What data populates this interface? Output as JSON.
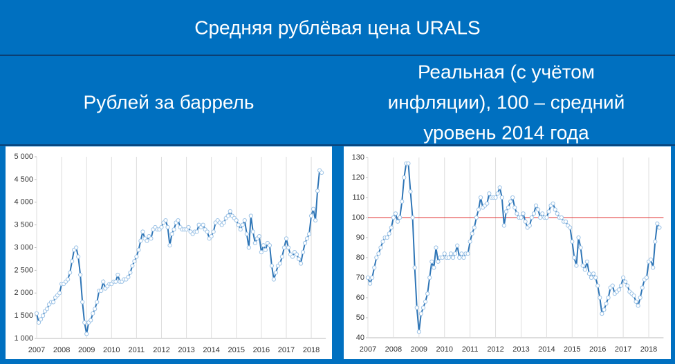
{
  "header": {
    "title": "Средняя рублёвая цена URALS",
    "left": [
      "Рублей за баррель"
    ],
    "right": [
      "Реальная (с учётом",
      "инфляции), 100 – средний",
      "уровень 2014 года"
    ]
  },
  "chart_data": [
    {
      "type": "line",
      "color": "#2e75b6",
      "marker_color": "#9dc3e6",
      "grid": "x",
      "categories": [
        "2007",
        null,
        null,
        null,
        null,
        null,
        null,
        null,
        null,
        null,
        null,
        null,
        "2008",
        null,
        null,
        null,
        null,
        null,
        null,
        null,
        null,
        null,
        null,
        null,
        "2009",
        null,
        null,
        null,
        null,
        null,
        null,
        null,
        null,
        null,
        null,
        null,
        "2010",
        null,
        null,
        null,
        null,
        null,
        null,
        null,
        null,
        null,
        null,
        null,
        "2011",
        null,
        null,
        null,
        null,
        null,
        null,
        null,
        null,
        null,
        null,
        null,
        "2012",
        null,
        null,
        null,
        null,
        null,
        null,
        null,
        null,
        null,
        null,
        null,
        "2013",
        null,
        null,
        null,
        null,
        null,
        null,
        null,
        null,
        null,
        null,
        null,
        "2014",
        null,
        null,
        null,
        null,
        null,
        null,
        null,
        null,
        null,
        null,
        null,
        "2015",
        null,
        null,
        null,
        null,
        null,
        null,
        null,
        null,
        null,
        null,
        null,
        "2016",
        null,
        null,
        null,
        null,
        null,
        null,
        null,
        null,
        null,
        null,
        null,
        "2017",
        null,
        null,
        null,
        null,
        null,
        null,
        null,
        null,
        null,
        null,
        null,
        "2018",
        null,
        null,
        null,
        null,
        null
      ],
      "values": [
        1550,
        1350,
        1420,
        1500,
        1600,
        1650,
        1750,
        1800,
        1800,
        1900,
        1950,
        2000,
        2200,
        2200,
        2250,
        2300,
        2450,
        2700,
        2950,
        3000,
        2800,
        2400,
        1800,
        1350,
        1100,
        1350,
        1400,
        1550,
        1650,
        1800,
        2050,
        2050,
        2250,
        2100,
        2150,
        2200,
        2200,
        2250,
        2250,
        2400,
        2250,
        2250,
        2300,
        2300,
        2350,
        2450,
        2600,
        2700,
        2800,
        2950,
        3150,
        3350,
        3200,
        3150,
        3250,
        3200,
        3400,
        3450,
        3400,
        3400,
        3450,
        3550,
        3600,
        3450,
        3050,
        3300,
        3400,
        3550,
        3600,
        3450,
        3400,
        3400,
        3400,
        3450,
        3350,
        3300,
        3350,
        3350,
        3500,
        3450,
        3500,
        3400,
        3350,
        3200,
        3250,
        3350,
        3550,
        3600,
        3550,
        3500,
        3550,
        3650,
        3700,
        3800,
        3700,
        3650,
        3600,
        3500,
        3400,
        3500,
        3600,
        3300,
        3000,
        3700,
        3350,
        3100,
        3200,
        3250,
        2900,
        3050,
        2950,
        3100,
        3050,
        2600,
        2300,
        2450,
        2600,
        2650,
        2800,
        3000,
        3200,
        3000,
        2850,
        2800,
        2900,
        2850,
        2750,
        2650,
        2900,
        3100,
        3200,
        3300,
        3700,
        3850,
        3600,
        4250,
        4700,
        4650
      ],
      "ylim": [
        1000,
        5000
      ],
      "yticks": [
        {
          "value": 1000,
          "label": "1 000"
        },
        {
          "value": 1500,
          "label": "1 500"
        },
        {
          "value": 2000,
          "label": "2 000"
        },
        {
          "value": 2500,
          "label": "2 500"
        },
        {
          "value": 3000,
          "label": "3 000"
        },
        {
          "value": 3500,
          "label": "3 500"
        },
        {
          "value": 4000,
          "label": "4 000"
        },
        {
          "value": 4500,
          "label": "4 500"
        },
        {
          "value": 5000,
          "label": "5 000"
        }
      ]
    },
    {
      "type": "line",
      "color": "#2e75b6",
      "marker_color": "#9dc3e6",
      "grid": "x",
      "reference_line": 100,
      "reference_color": "#e03030",
      "categories": [
        "2007",
        null,
        null,
        null,
        null,
        null,
        null,
        null,
        null,
        null,
        null,
        null,
        "2008",
        null,
        null,
        null,
        null,
        null,
        null,
        null,
        null,
        null,
        null,
        null,
        "2009",
        null,
        null,
        null,
        null,
        null,
        null,
        null,
        null,
        null,
        null,
        null,
        "2010",
        null,
        null,
        null,
        null,
        null,
        null,
        null,
        null,
        null,
        null,
        null,
        "2011",
        null,
        null,
        null,
        null,
        null,
        null,
        null,
        null,
        null,
        null,
        null,
        "2012",
        null,
        null,
        null,
        null,
        null,
        null,
        null,
        null,
        null,
        null,
        null,
        "2013",
        null,
        null,
        null,
        null,
        null,
        null,
        null,
        null,
        null,
        null,
        null,
        "2014",
        null,
        null,
        null,
        null,
        null,
        null,
        null,
        null,
        null,
        null,
        null,
        "2015",
        null,
        null,
        null,
        null,
        null,
        null,
        null,
        null,
        null,
        null,
        null,
        "2016",
        null,
        null,
        null,
        null,
        null,
        null,
        null,
        null,
        null,
        null,
        null,
        "2017",
        null,
        null,
        null,
        null,
        null,
        null,
        null,
        null,
        null,
        null,
        null,
        "2018",
        null,
        null,
        null,
        null,
        null
      ],
      "values": [
        70,
        67,
        70,
        75,
        80,
        82,
        85,
        88,
        90,
        90,
        92,
        95,
        100,
        102,
        98,
        100,
        108,
        120,
        127,
        127,
        113,
        100,
        75,
        55,
        43,
        52,
        55,
        58,
        62,
        70,
        78,
        75,
        85,
        78,
        80,
        80,
        82,
        80,
        80,
        82,
        80,
        82,
        86,
        80,
        82,
        80,
        82,
        82,
        88,
        92,
        95,
        100,
        104,
        110,
        105,
        106,
        107,
        112,
        110,
        110,
        110,
        112,
        115,
        110,
        96,
        103,
        105,
        108,
        110,
        105,
        102,
        100,
        100,
        102,
        98,
        95,
        96,
        100,
        102,
        106,
        104,
        100,
        102,
        100,
        100,
        103,
        106,
        107,
        104,
        102,
        100,
        100,
        98,
        98,
        96,
        95,
        88,
        80,
        76,
        90,
        85,
        76,
        74,
        78,
        72,
        70,
        72,
        70,
        66,
        60,
        52,
        54,
        57,
        60,
        65,
        66,
        62,
        63,
        64,
        66,
        70,
        68,
        66,
        63,
        62,
        61,
        58,
        56,
        60,
        65,
        69,
        70,
        78,
        79,
        75,
        88,
        97,
        95
      ],
      "ylim": [
        40,
        130
      ],
      "yticks": [
        40,
        50,
        60,
        70,
        80,
        90,
        100,
        110,
        120,
        130
      ]
    }
  ]
}
